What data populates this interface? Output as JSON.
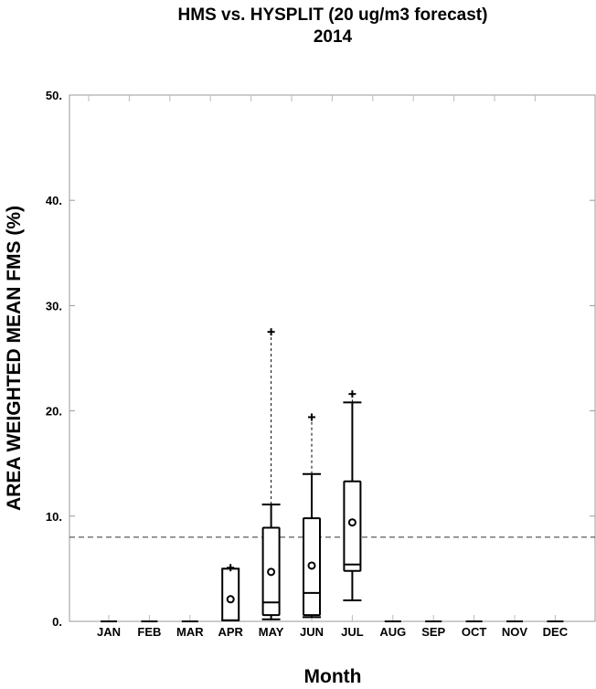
{
  "chart_data": {
    "type": "box",
    "title": "HMS vs. HYSPLIT (20 ug/m3 forecast)",
    "subtitle": "2014",
    "xlabel": "Month",
    "ylabel": "AREA WEIGHTED MEAN FMS (%)",
    "ylim": [
      0,
      50
    ],
    "yticks": [
      0,
      10,
      20,
      30,
      40,
      50
    ],
    "ytick_labels": [
      "0.",
      "10.",
      "20.",
      "30.",
      "40.",
      "50."
    ],
    "categories": [
      "JAN",
      "FEB",
      "MAR",
      "APR",
      "MAY",
      "JUN",
      "JUL",
      "AUG",
      "SEP",
      "OCT",
      "NOV",
      "DEC"
    ],
    "threshold": 8.0,
    "boxes": [
      {
        "month": "JAN",
        "empty": true
      },
      {
        "month": "FEB",
        "empty": true
      },
      {
        "month": "MAR",
        "empty": true
      },
      {
        "month": "APR",
        "whisker_low": 0.1,
        "q1": 0.1,
        "median": 0.1,
        "q3": 5.0,
        "whisker_high": 5.0,
        "mean": 2.1,
        "outliers": [
          5.1
        ]
      },
      {
        "month": "MAY",
        "whisker_low": 0.2,
        "q1": 0.6,
        "median": 1.8,
        "q3": 8.9,
        "whisker_high": 11.1,
        "mean": 4.7,
        "outliers": [
          27.5
        ]
      },
      {
        "month": "JUN",
        "whisker_low": 0.4,
        "q1": 0.6,
        "median": 2.7,
        "q3": 9.8,
        "whisker_high": 14.0,
        "mean": 5.3,
        "outliers": [
          19.4
        ]
      },
      {
        "month": "JUL",
        "whisker_low": 2.0,
        "q1": 4.8,
        "median": 5.4,
        "q3": 13.3,
        "whisker_high": 20.8,
        "mean": 9.4,
        "outliers": [
          21.6
        ]
      },
      {
        "month": "AUG",
        "empty": true
      },
      {
        "month": "SEP",
        "empty": true
      },
      {
        "month": "OCT",
        "empty": true
      },
      {
        "month": "NOV",
        "empty": true
      },
      {
        "month": "DEC",
        "empty": true
      }
    ]
  }
}
